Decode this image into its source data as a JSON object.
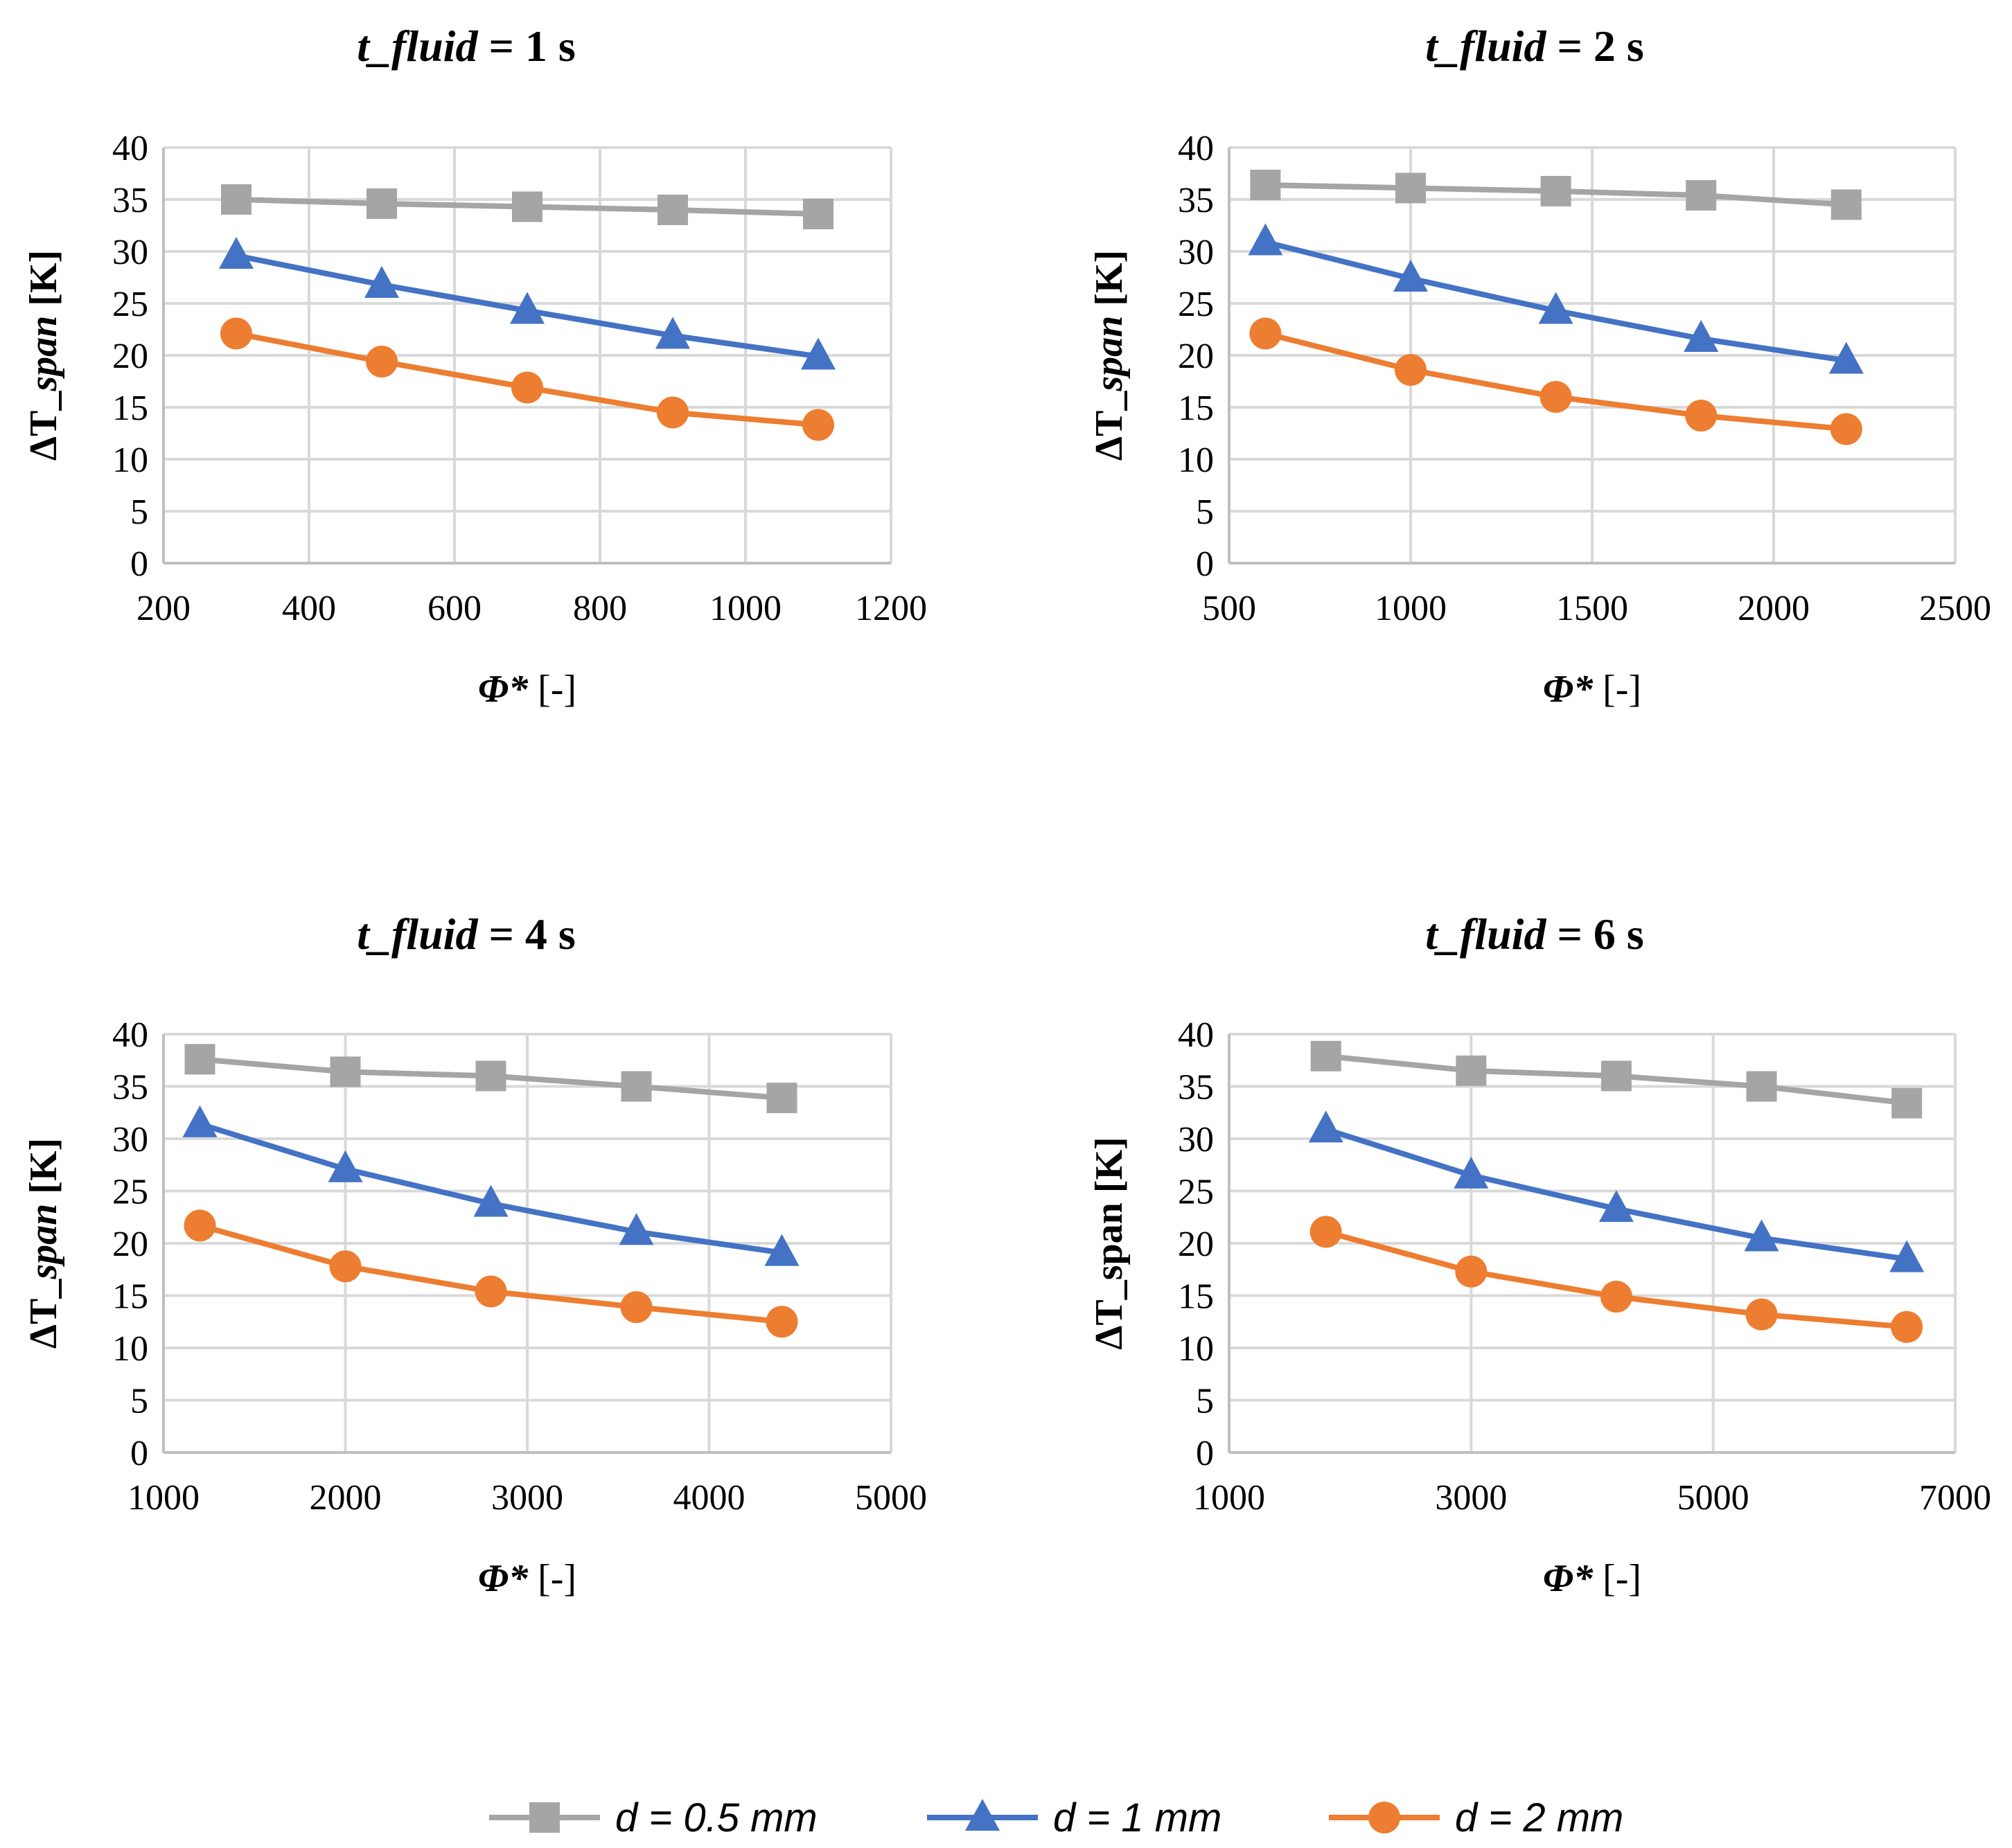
{
  "colors": {
    "d05": "#a5a5a5",
    "d1": "#4472c4",
    "d2": "#ed7d31",
    "grid": "#d9d9d9",
    "axis": "#bfbfbf"
  },
  "legend": [
    {
      "key": "d05",
      "var": "d",
      "rest": " = 0.5 mm",
      "marker": "square"
    },
    {
      "key": "d1",
      "var": "d",
      "rest": " = 1 mm",
      "marker": "triangle"
    },
    {
      "key": "d2",
      "var": "d",
      "rest": " = 2 mm",
      "marker": "circle"
    }
  ],
  "chart_data": [
    {
      "type": "line",
      "title_var": "t_fluid",
      "title_rest": " = 1 s",
      "xlabel_var": "Φ*",
      "xlabel_rest": " [-]",
      "ylabel_main": "ΔT_",
      "ylabel_sub": "span",
      "ylabel_unit": " [K]",
      "ylabel_sub_italic": true,
      "xlim": [
        200,
        1200
      ],
      "xticks": [
        200,
        400,
        600,
        800,
        1000,
        1200
      ],
      "ylim": [
        0,
        40
      ],
      "yticks": [
        0,
        5,
        10,
        15,
        20,
        25,
        30,
        35,
        40
      ],
      "x": [
        300,
        500,
        700,
        900,
        1100
      ],
      "series": [
        {
          "name": "d = 0.5 mm",
          "key": "d05",
          "values": [
            35.0,
            34.6,
            34.3,
            34.0,
            33.6
          ]
        },
        {
          "name": "d = 1 mm",
          "key": "d1",
          "values": [
            29.6,
            26.8,
            24.3,
            21.9,
            19.9
          ]
        },
        {
          "name": "d = 2 mm",
          "key": "d2",
          "values": [
            22.1,
            19.4,
            16.9,
            14.5,
            13.3
          ]
        }
      ]
    },
    {
      "type": "line",
      "title_var": "t_fluid",
      "title_rest": " = 2 s",
      "xlabel_var": "Φ*",
      "xlabel_rest": " [-]",
      "ylabel_main": "ΔT_",
      "ylabel_sub": "span",
      "ylabel_unit": " [K]",
      "ylabel_sub_italic": true,
      "xlim": [
        500,
        2500
      ],
      "xticks": [
        500,
        1000,
        1500,
        2000,
        2500
      ],
      "ylim": [
        0,
        40
      ],
      "yticks": [
        0,
        5,
        10,
        15,
        20,
        25,
        30,
        35,
        40
      ],
      "x": [
        600,
        1000,
        1400,
        1800,
        2200
      ],
      "series": [
        {
          "name": "d = 0.5 mm",
          "key": "d05",
          "values": [
            36.4,
            36.1,
            35.8,
            35.4,
            34.5
          ]
        },
        {
          "name": "d = 1 mm",
          "key": "d1",
          "values": [
            30.9,
            27.4,
            24.3,
            21.6,
            19.5
          ]
        },
        {
          "name": "d = 2 mm",
          "key": "d2",
          "values": [
            22.1,
            18.6,
            16.0,
            14.2,
            12.9
          ]
        }
      ]
    },
    {
      "type": "line",
      "title_var": "t_fluid",
      "title_rest": " = 4 s",
      "xlabel_var": "Φ*",
      "xlabel_rest": " [-]",
      "ylabel_main": "ΔT_",
      "ylabel_sub": "span",
      "ylabel_unit": " [K]",
      "ylabel_sub_italic": true,
      "xlim": [
        1000,
        5000
      ],
      "xticks": [
        1000,
        2000,
        3000,
        4000,
        5000
      ],
      "ylim": [
        0,
        40
      ],
      "yticks": [
        0,
        5,
        10,
        15,
        20,
        25,
        30,
        35,
        40
      ],
      "x": [
        1200,
        2000,
        2800,
        3600,
        4400
      ],
      "series": [
        {
          "name": "d = 0.5 mm",
          "key": "d05",
          "values": [
            37.6,
            36.4,
            36.0,
            35.0,
            33.9
          ]
        },
        {
          "name": "d = 1 mm",
          "key": "d1",
          "values": [
            31.4,
            27.1,
            23.8,
            21.1,
            19.1
          ]
        },
        {
          "name": "d = 2 mm",
          "key": "d2",
          "values": [
            21.7,
            17.8,
            15.4,
            13.9,
            12.5
          ]
        }
      ]
    },
    {
      "type": "line",
      "title_var": "t_fluid",
      "title_rest": " = 6 s",
      "xlabel_var": "Φ*",
      "xlabel_rest": " [-]",
      "ylabel_main": "ΔT_",
      "ylabel_sub": "span",
      "ylabel_unit": " [K]",
      "ylabel_sub_italic": false,
      "xlim": [
        1000,
        7000
      ],
      "xticks": [
        1000,
        3000,
        5000,
        7000
      ],
      "ylim": [
        0,
        40
      ],
      "yticks": [
        0,
        5,
        10,
        15,
        20,
        25,
        30,
        35,
        40
      ],
      "x": [
        1800,
        3000,
        4200,
        5400,
        6600
      ],
      "series": [
        {
          "name": "d = 0.5 mm",
          "key": "d05",
          "values": [
            37.9,
            36.5,
            36.0,
            35.0,
            33.4
          ]
        },
        {
          "name": "d = 1 mm",
          "key": "d1",
          "values": [
            30.9,
            26.5,
            23.3,
            20.5,
            18.5
          ]
        },
        {
          "name": "d = 2 mm",
          "key": "d2",
          "values": [
            21.1,
            17.3,
            14.9,
            13.2,
            12.0
          ]
        }
      ]
    }
  ]
}
